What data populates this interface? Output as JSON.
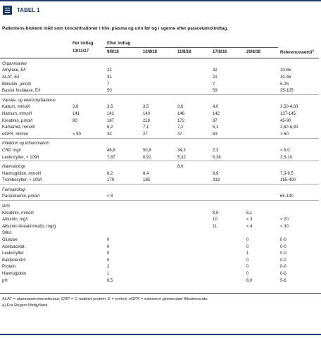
{
  "header": {
    "title": "TABEL 1"
  },
  "caption": "Patientens biokemi målt som koncentrationer i hhv. plasma og urin før og i ugerne efter paracetamolindtag.",
  "table": {
    "group_headers": {
      "before": "Før indtag",
      "after": "Efter indtag"
    },
    "columns": [
      "13/11/17",
      "9/8/18",
      "10/8/18",
      "11/8/18",
      "17/8/18",
      "20/8/18",
      "Referenceværdi"
    ],
    "reference_mark": "a",
    "sections": [
      {
        "title": "Organmarker",
        "rows": [
          {
            "label": "Amylase, E/l",
            "cells": [
              null,
              "22",
              null,
              null,
              "32",
              null,
              "10-65"
            ]
          },
          {
            "label": "ALAT, E/l",
            "cells": [
              null,
              "31",
              null,
              null,
              "21",
              null,
              "10-45"
            ]
          },
          {
            "label": "Bilirubin, μmol/l",
            "cells": [
              null,
              "7",
              null,
              null,
              "7",
              null,
              "5-25"
            ]
          },
          {
            "label": "Basisk fosfatase, E/l",
            "cells": [
              null,
              "50",
              null,
              null,
              "59",
              null,
              "35-105"
            ]
          }
        ]
      },
      {
        "title": "Væske- og elektrolytbalance",
        "rows": [
          {
            "label": "Kalium, mmol/l",
            "cells": [
              "3,6",
              "3,5",
              "3,5",
              "3,6",
              "4,0",
              null,
              "3,50-4,60"
            ]
          },
          {
            "label": "Natrium, mmol/l",
            "cells": [
              "141",
              "142",
              "140",
              "146",
              "142",
              null,
              "137-145"
            ]
          },
          {
            "label": "Kreatinin, μmol/l",
            "cells": [
              "80",
              "187",
              "218",
              "172",
              "87",
              null,
              "45-90"
            ]
          },
          {
            "label": "Karbamid, mmol/l",
            "cells": [
              null,
              "6,2",
              "7,1",
              "7,2",
              "5,1",
              null,
              "2,60-6,40"
            ]
          },
          {
            "label": "eGFR, ml/min",
            "cells": [
              "> 90",
              "33",
              "27",
              "37",
              "83",
              null,
              "> 60"
            ]
          }
        ]
      },
      {
        "title": "Infektion og inflammation",
        "rows": [
          {
            "label": "CRP, mg/l",
            "cells": [
              null,
              "46,8",
              "50,8",
              "34,3",
              "2,3",
              null,
              "< 8,0"
            ]
          },
          {
            "label": "Leukocytter, × 109/l",
            "cells": [
              null,
              "7,67",
              "6,91",
              "5,32",
              "6,36",
              null,
              "3,5-10"
            ]
          }
        ]
      },
      {
        "title": "Hæmatologi",
        "cells": [
          null,
          null,
          null,
          "8,0",
          null,
          null,
          null
        ],
        "rows": [
          {
            "label": "Hæmoglobin, mmol/l",
            "cells": [
              null,
              "8,2",
              "8,4",
              null,
              "8,9",
              null,
              "7,3-9,5"
            ]
          },
          {
            "label": "Trombocytter, × 109/l",
            "cells": [
              null,
              "179",
              "185",
              null,
              "319",
              null,
              "165-400"
            ]
          }
        ]
      },
      {
        "title": "Farmakologi",
        "rows": [
          {
            "label": "Paracetamol, μmol/l",
            "cells": [
              null,
              "< 8",
              null,
              null,
              null,
              null,
              "65-130"
            ]
          }
        ]
      },
      {
        "title": "Urin",
        "rows": [
          {
            "label": "Kreatinin, mmol/l",
            "cells": [
              null,
              null,
              null,
              null,
              "8,5",
              "6,1",
              null
            ]
          },
          {
            "label": "Albumin, mg/l",
            "cells": [
              null,
              null,
              null,
              null,
              "10",
              "< 3",
              "< 20"
            ]
          },
          {
            "label": "Albumin-/kreatininratio, mg/g",
            "cells": [
              null,
              null,
              null,
              null,
              "11",
              "< 4",
              "< 30"
            ]
          },
          {
            "label": "Stiks:"
          },
          {
            "label": "Glukose",
            "cells": [
              null,
              "0",
              null,
              null,
              null,
              "0",
              "0-0"
            ]
          },
          {
            "label": "Acetoacetat",
            "cells": [
              null,
              "0",
              null,
              null,
              null,
              "0",
              "0-0"
            ]
          },
          {
            "label": "Leukocytter",
            "cells": [
              null,
              "0",
              null,
              null,
              null,
              "1",
              "0-0"
            ]
          },
          {
            "label": "Bakterienitrit",
            "cells": [
              null,
              "0",
              null,
              null,
              null,
              "0",
              "0-0"
            ]
          },
          {
            "label": "Protein",
            "cells": [
              null,
              "2",
              null,
              null,
              null,
              "0",
              "0-0"
            ]
          },
          {
            "label": "Hæmoglobin",
            "cells": [
              null,
              "1",
              null,
              null,
              null,
              "0",
              "0-0"
            ]
          },
          {
            "label": "pH",
            "cells": [
              null,
              "6,5",
              null,
              null,
              null,
              "6,0",
              "5-6"
            ]
          }
        ]
      }
    ]
  },
  "notes": [
    "ALAT = alaninaminotransferase; CRP = C-reaktivt protein; E = enhed; eGFR = estimeret glomerulær filtrationsrate.",
    "a) Fra Region Midtjylland."
  ]
}
